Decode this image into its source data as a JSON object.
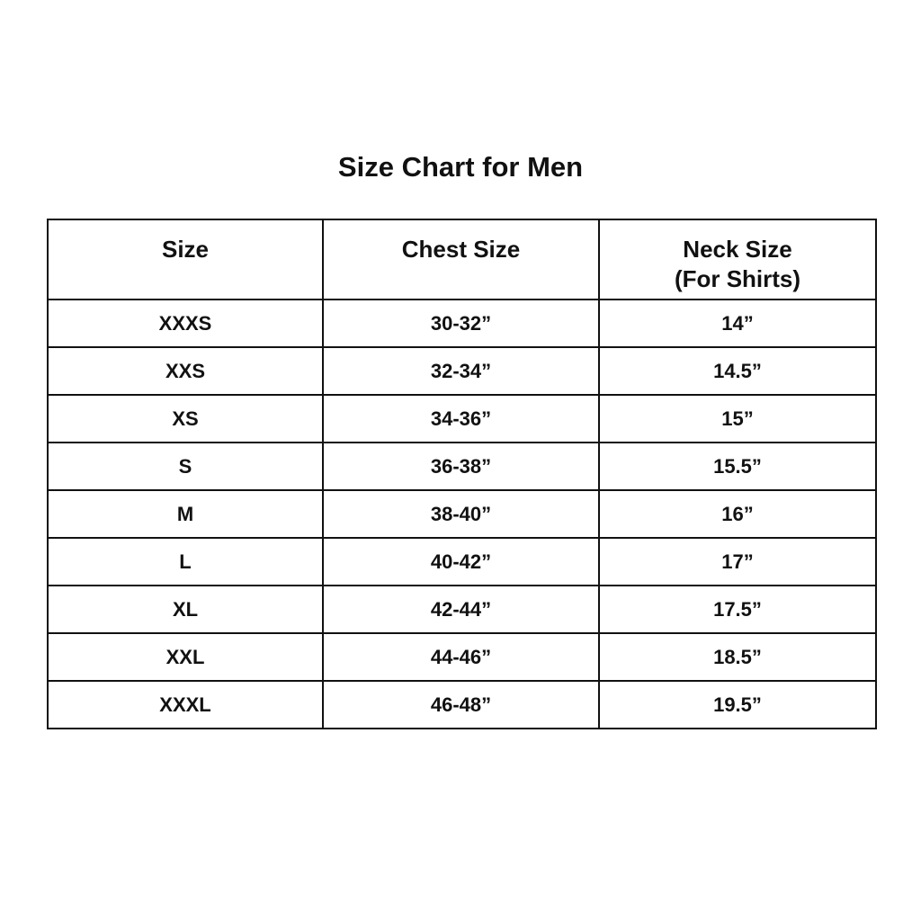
{
  "title": "Size Chart for Men",
  "table": {
    "headers": [
      {
        "label": "Size",
        "sublabel": ""
      },
      {
        "label": "Chest Size",
        "sublabel": ""
      },
      {
        "label": "Neck Size",
        "sublabel": "(For Shirts)"
      }
    ],
    "rows": [
      [
        "XXXS",
        "30-32”",
        "14”"
      ],
      [
        "XXS",
        "32-34”",
        "14.5”"
      ],
      [
        "XS",
        "34-36”",
        "15”"
      ],
      [
        "S",
        "36-38”",
        "15.5”"
      ],
      [
        "M",
        "38-40”",
        "16”"
      ],
      [
        "L",
        "40-42”",
        "17”"
      ],
      [
        "XL",
        "42-44”",
        "17.5”"
      ],
      [
        "XXL",
        "44-46”",
        "18.5”"
      ],
      [
        "XXXL",
        "46-48”",
        "19.5”"
      ]
    ]
  }
}
